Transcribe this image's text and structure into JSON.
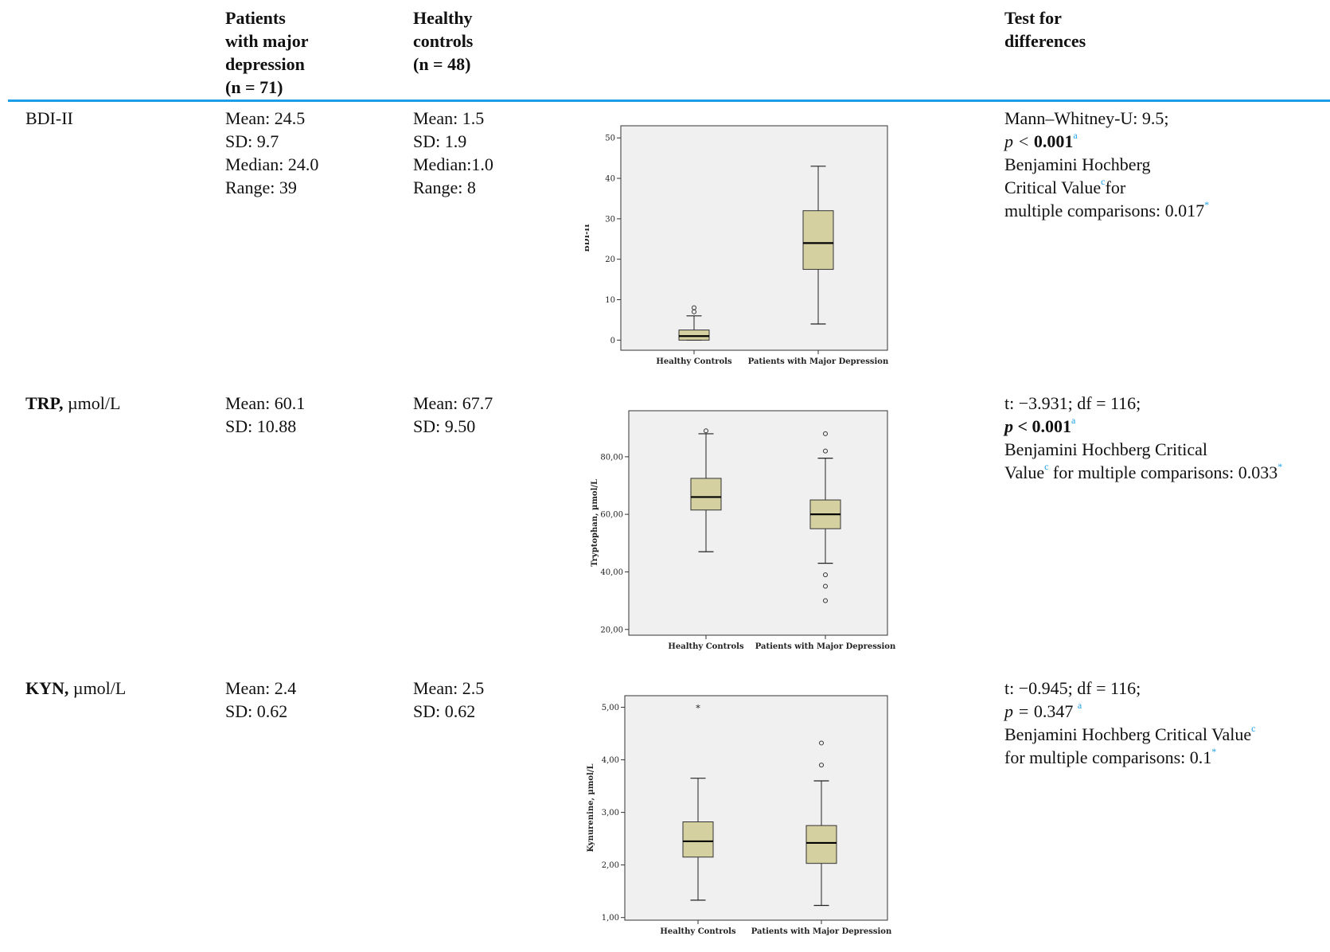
{
  "header": {
    "col_patients": [
      "Patients",
      "with major",
      "depression",
      "(n = 71)"
    ],
    "col_controls": [
      "Healthy",
      "controls",
      "(n = 48)"
    ],
    "col_test": [
      "Test for",
      "differences"
    ]
  },
  "rows": [
    {
      "label_bold": "",
      "label_rest": "BDI-II",
      "patients": [
        "Mean: 24.5",
        "SD: 9.7",
        "Median: 24.0",
        "Range: 39"
      ],
      "controls": [
        "Mean: 1.5",
        "SD: 1.9",
        "Median:1.0",
        "Range: 8"
      ],
      "test": {
        "line1": "Mann–Whitney-U: 9.5;",
        "p_prefix": "p < ",
        "p_value": "0.001",
        "p_sup": "a",
        "line3": "Benjamini Hochberg",
        "line4_text": "Critical Value",
        "line4_sup": "c",
        "line4_after": "for",
        "line5_text": "multiple comparisons: 0.017",
        "line5_sup": "*"
      }
    },
    {
      "label_bold": "TRP,",
      "label_rest": " µmol/L",
      "patients": [
        "Mean: 60.1",
        "SD: 10.88"
      ],
      "controls": [
        "Mean: 67.7",
        "SD: 9.50"
      ],
      "test": {
        "line1": "t: −3.931; df = 116;",
        "p_prefix": "p < ",
        "p_value": "0.001",
        "p_sup": "a",
        "line3": "Benjamini Hochberg Critical",
        "line4_text": "Value",
        "line4_sup": "c",
        "line4_after": " for multiple comparisons: 0.033",
        "line4_sup2": "*"
      }
    },
    {
      "label_bold": "KYN,",
      "label_rest": " µmol/L",
      "patients": [
        "Mean: 2.4",
        "SD: 0.62"
      ],
      "controls": [
        "Mean: 2.5",
        "SD: 0.62"
      ],
      "test": {
        "line1": "t: −0.945; df = 116;",
        "p_prefix": "p = ",
        "p_value": "0.347",
        "p_sup": "a",
        "line3_text": "Benjamini Hochberg Critical Value",
        "line3_sup": "c",
        "line4_text": "for multiple comparisons: 0.1",
        "line4_sup": "*"
      }
    }
  ],
  "chart_data": [
    {
      "type": "boxplot",
      "ylabel": "BDI-II",
      "categories": [
        "Healthy Controls",
        "Patients with Major Depression"
      ],
      "ylim": [
        -2.5,
        53
      ],
      "yticks": [
        0,
        10,
        20,
        30,
        40,
        50
      ],
      "ytick_labels": [
        "0",
        "10",
        "20",
        "30",
        "40",
        "50"
      ],
      "boxes": [
        {
          "min": 0,
          "q1": 0,
          "median": 1,
          "q3": 2.5,
          "max": 6,
          "outliers": [
            7,
            8
          ],
          "extremes": []
        },
        {
          "min": 4,
          "q1": 17.5,
          "median": 24,
          "q3": 32,
          "max": 43,
          "outliers": [],
          "extremes": []
        }
      ],
      "colors": {
        "box": "#d5d09f",
        "plot_bg": "#f0f0f0"
      }
    },
    {
      "type": "boxplot",
      "ylabel": "Tryptophan, µmol/L",
      "categories": [
        "Healthy Controls",
        "Patients with Major Depression"
      ],
      "ylim": [
        18,
        96
      ],
      "yticks": [
        20,
        40,
        60,
        80
      ],
      "ytick_labels": [
        "20,00",
        "40,00",
        "60,00",
        "80,00"
      ],
      "boxes": [
        {
          "min": 47,
          "q1": 61.5,
          "median": 66,
          "q3": 72.5,
          "max": 88,
          "outliers": [
            89
          ],
          "extremes": []
        },
        {
          "min": 43,
          "q1": 55,
          "median": 60,
          "q3": 65,
          "max": 79.5,
          "outliers": [
            88,
            82,
            39,
            35,
            30
          ],
          "extremes": []
        }
      ],
      "colors": {
        "box": "#d5d09f",
        "plot_bg": "#f0f0f0"
      }
    },
    {
      "type": "boxplot",
      "ylabel": "Kynurenine, µmol/L",
      "categories": [
        "Healthy Controls",
        "Patients with Major Depression"
      ],
      "ylim": [
        0.95,
        5.22
      ],
      "yticks": [
        1,
        2,
        3,
        4,
        5
      ],
      "ytick_labels": [
        "1,00",
        "2,00",
        "3,00",
        "4,00",
        "5,00"
      ],
      "boxes": [
        {
          "min": 1.33,
          "q1": 2.15,
          "median": 2.45,
          "q3": 2.82,
          "max": 3.65,
          "outliers": [],
          "extremes": [
            5.0
          ]
        },
        {
          "min": 1.23,
          "q1": 2.03,
          "median": 2.42,
          "q3": 2.75,
          "max": 3.6,
          "outliers": [
            4.32,
            3.9
          ],
          "extremes": []
        }
      ],
      "colors": {
        "box": "#d5d09f",
        "plot_bg": "#f0f0f0"
      }
    }
  ]
}
